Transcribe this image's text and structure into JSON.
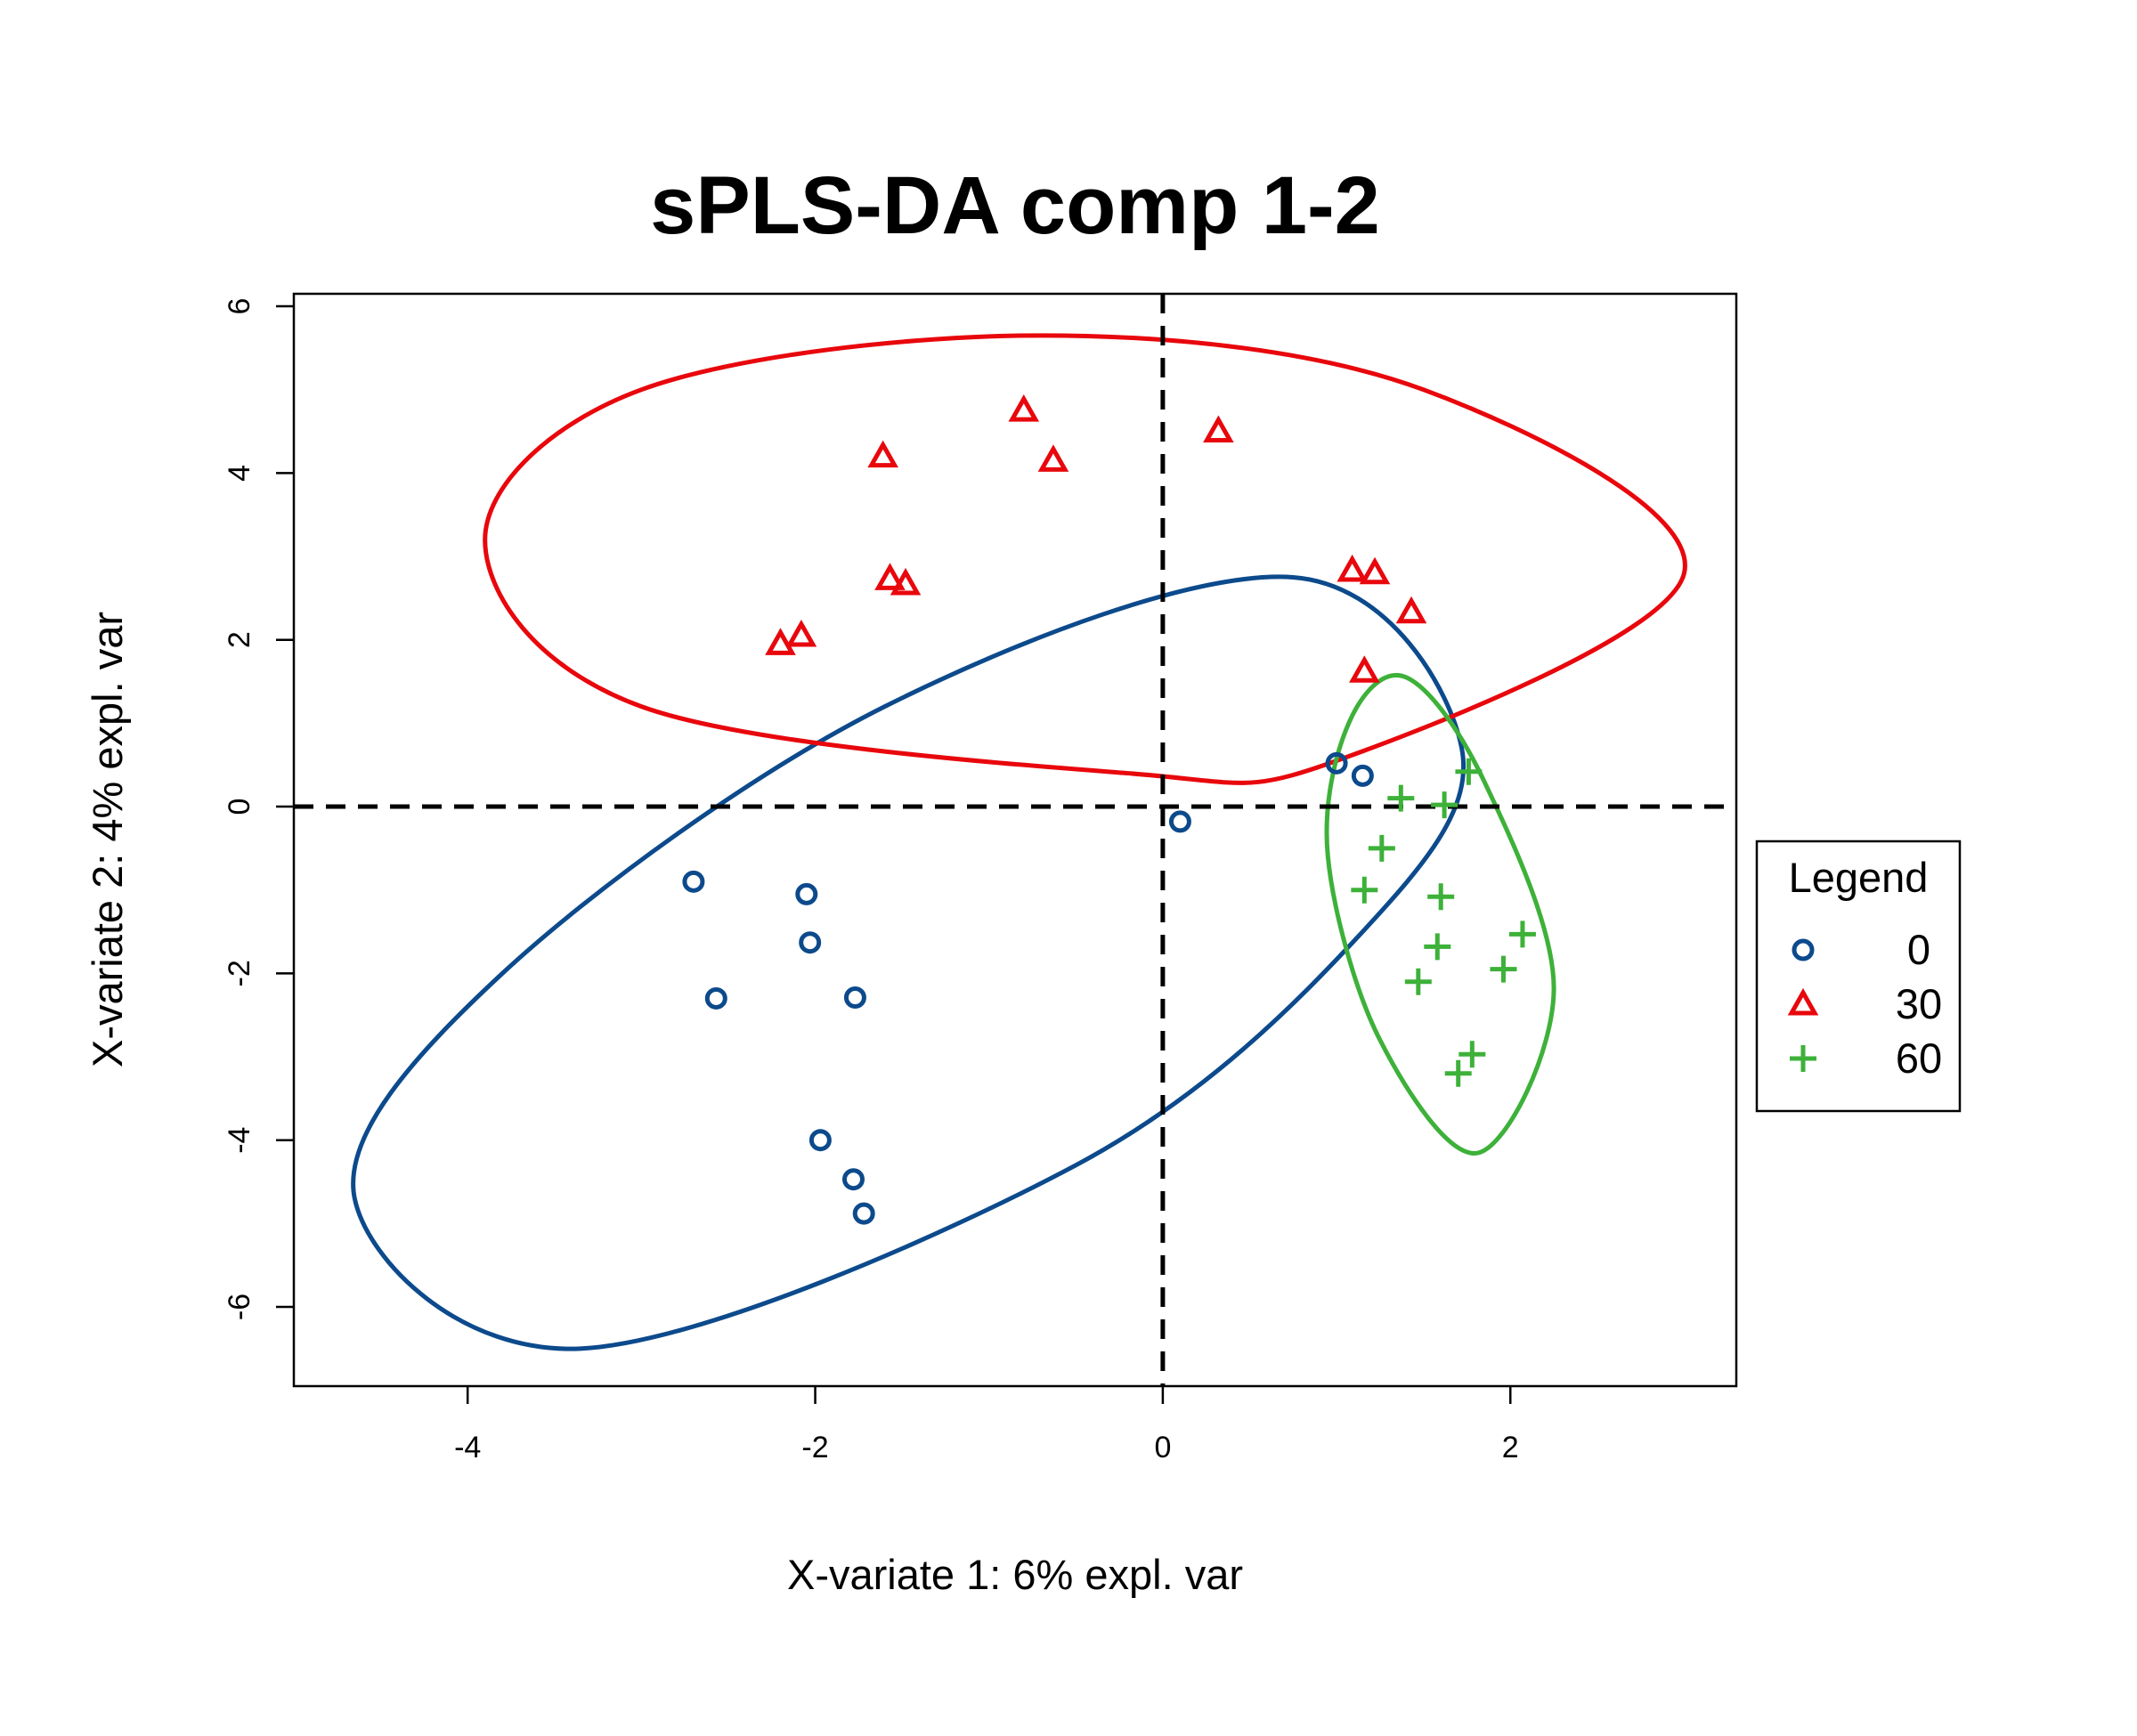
{
  "chart_data": {
    "type": "scatter",
    "title": "sPLS-DA comp 1-2",
    "xlabel": "X-variate 1: 6% expl. var",
    "ylabel": "X-variate 2: 4% expl. var",
    "xlim": [
      -5,
      3.3
    ],
    "ylim": [
      -6.95,
      6.15
    ],
    "xticks": [
      -4,
      -2,
      0,
      2
    ],
    "xtick_labels": [
      "-4",
      "-2",
      "0",
      "2"
    ],
    "yticks": [
      -6,
      -4,
      -2,
      0,
      2,
      4,
      6
    ],
    "ytick_labels": [
      "-6",
      "-4",
      "-2",
      "0",
      "2",
      "4",
      "6"
    ],
    "reference_lines": {
      "x": 0,
      "y": 0,
      "style": "dashed"
    },
    "legend": {
      "title": "Legend",
      "position": "right"
    },
    "series": [
      {
        "name": "0",
        "marker": "circle",
        "color": "#0C4A8C",
        "points": [
          [
            -2.7,
            -0.9
          ],
          [
            -2.05,
            -1.05
          ],
          [
            -2.03,
            -1.63
          ],
          [
            -2.57,
            -2.3
          ],
          [
            -1.77,
            -2.29
          ],
          [
            -1.97,
            -4.0
          ],
          [
            -1.78,
            -4.47
          ],
          [
            -1.72,
            -4.88
          ],
          [
            0.1,
            -0.18
          ],
          [
            1.0,
            0.52
          ],
          [
            1.15,
            0.37
          ]
        ],
        "ellipse": {
          "points": [
            [
              0.75,
              2.75
            ],
            [
              1.72,
              0.7
            ],
            [
              1.15,
              -1.5
            ],
            [
              -0.5,
              -4.3
            ],
            [
              -3.35,
              -6.5
            ],
            [
              -4.65,
              -4.7
            ],
            [
              -3.8,
              -2.0
            ],
            [
              -1.6,
              1.2
            ]
          ]
        }
      },
      {
        "name": "30",
        "marker": "triangle",
        "color": "#E8070C",
        "points": [
          [
            -0.8,
            4.75
          ],
          [
            -1.61,
            4.2
          ],
          [
            -0.63,
            4.15
          ],
          [
            0.32,
            4.5
          ],
          [
            -1.57,
            2.73
          ],
          [
            -1.48,
            2.67
          ],
          [
            -2.2,
            1.95
          ],
          [
            -2.08,
            2.05
          ],
          [
            1.09,
            2.83
          ],
          [
            1.22,
            2.8
          ],
          [
            1.43,
            2.33
          ],
          [
            1.16,
            1.62
          ]
        ],
        "ellipse": {
          "points": [
            [
              -0.7,
              5.65
            ],
            [
              1.5,
              5.0
            ],
            [
              3.0,
              2.8
            ],
            [
              1.0,
              0.55
            ],
            [
              -0.2,
              0.4
            ],
            [
              -3.0,
              1.2
            ],
            [
              -3.9,
              3.2
            ],
            [
              -3.0,
              5.0
            ]
          ]
        }
      },
      {
        "name": "60",
        "marker": "plus",
        "color": "#3DB139",
        "points": [
          [
            1.37,
            0.1
          ],
          [
            1.62,
            0.02
          ],
          [
            1.76,
            0.42
          ],
          [
            1.26,
            -0.5
          ],
          [
            1.16,
            -1.0
          ],
          [
            1.6,
            -1.08
          ],
          [
            1.58,
            -1.68
          ],
          [
            2.07,
            -1.53
          ],
          [
            1.47,
            -2.1
          ],
          [
            1.96,
            -1.95
          ],
          [
            1.78,
            -2.97
          ],
          [
            1.7,
            -3.2
          ]
        ],
        "ellipse": {
          "points": [
            [
              1.4,
              1.55
            ],
            [
              1.85,
              0.3
            ],
            [
              2.25,
              -2.2
            ],
            [
              1.82,
              -4.15
            ],
            [
              1.25,
              -2.8
            ],
            [
              0.95,
              -0.6
            ],
            [
              1.07,
              1.0
            ]
          ]
        }
      }
    ]
  }
}
